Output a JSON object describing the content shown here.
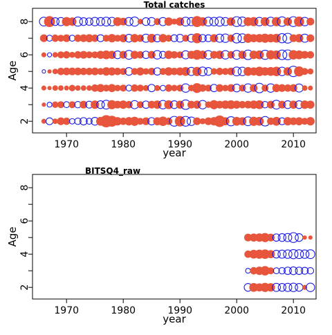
{
  "colors": {
    "positive": "#e8553d",
    "negative": "#1a1ae6",
    "frame": "#000000"
  },
  "chart_data": [
    {
      "type": "scatter",
      "subtype": "bubble-residuals",
      "title": "Total catches",
      "xlabel": "year",
      "ylabel": "Age",
      "xlim": [
        1964,
        2014
      ],
      "ylim": [
        1.3,
        8.8
      ],
      "xticks": [
        1970,
        1980,
        1990,
        2000,
        2010
      ],
      "yticks": [
        2,
        4,
        6,
        8
      ],
      "y_minor_ticks": [
        3,
        5,
        7
      ],
      "legend": "none",
      "grid": false,
      "ages": [
        2,
        3,
        4,
        5,
        6,
        7,
        8
      ],
      "years": [
        1966,
        1967,
        1968,
        1969,
        1970,
        1971,
        1972,
        1973,
        1974,
        1975,
        1976,
        1977,
        1978,
        1979,
        1980,
        1981,
        1982,
        1983,
        1984,
        1985,
        1986,
        1987,
        1988,
        1989,
        1990,
        1991,
        1992,
        1993,
        1994,
        1995,
        1996,
        1997,
        1998,
        1999,
        2000,
        2001,
        2002,
        2003,
        2004,
        2005,
        2006,
        2007,
        2008,
        2009,
        2010,
        2011,
        2012,
        2013
      ],
      "residuals": {
        "2": [
          0.4,
          -0.8,
          0.5,
          1.0,
          0.9,
          -0.5,
          -0.7,
          -0.9,
          -0.6,
          -1.0,
          1.3,
          2.5,
          2.0,
          1.2,
          0.9,
          1.2,
          1.4,
          0.8,
          1.0,
          -0.9,
          1.1,
          1.5,
          0.9,
          -1.6,
          1.8,
          -1.6,
          -1.2,
          1.0,
          0.6,
          1.0,
          1.2,
          2.2,
          1.1,
          -1.4,
          1.3,
          1.1,
          -1.3,
          1.4,
          1.3,
          -1.5,
          0.9,
          1.3,
          -0.8,
          1.2,
          1.0,
          1.1,
          0.8,
          1.2
        ],
        "3": [
          0.3,
          -0.4,
          0.7,
          0.8,
          -0.6,
          0.8,
          -0.7,
          1.0,
          -0.8,
          1.2,
          -1.0,
          -1.3,
          1.4,
          1.0,
          1.2,
          0.9,
          -1.1,
          0.8,
          -0.9,
          1.0,
          1.2,
          -1.2,
          1.3,
          -1.0,
          1.1,
          -1.5,
          1.0,
          1.1,
          -1.2,
          0.7,
          1.4,
          1.0,
          1.2,
          1.3,
          1.1,
          0.9,
          1.0,
          1.2,
          1.3,
          -0.7,
          1.0,
          -1.3,
          1.0,
          -1.0,
          1.1,
          -1.0,
          1.2,
          1.1
        ],
        "4": [
          0.4,
          0.3,
          0.5,
          0.5,
          0.4,
          0.7,
          0.5,
          0.5,
          0.5,
          0.9,
          1.1,
          0.8,
          1.1,
          0.7,
          0.8,
          -0.6,
          0.9,
          0.8,
          0.6,
          -0.9,
          0.6,
          -0.5,
          0.9,
          0.7,
          0.8,
          -1.2,
          0.7,
          1.6,
          0.9,
          0.8,
          -0.9,
          1.0,
          0.7,
          1.0,
          -1.0,
          0.8,
          -1.2,
          1.0,
          -1.5,
          0.8,
          -1.2,
          1.1,
          1.0,
          0.9,
          1.0,
          -1.1,
          0.5,
          0.4
        ],
        "5": [
          -0.2,
          0.3,
          0.5,
          0.9,
          1.0,
          1.0,
          1.0,
          0.9,
          0.9,
          1.0,
          0.8,
          1.2,
          1.1,
          0.9,
          0.8,
          -1.0,
          0.8,
          1.1,
          0.7,
          0.9,
          -0.9,
          0.8,
          1.2,
          0.9,
          1.1,
          1.3,
          -1.1,
          1.4,
          -1.3,
          -1.0,
          0.7,
          0.9,
          0.8,
          1.0,
          -1.3,
          -1.2,
          1.3,
          1.1,
          1.5,
          1.2,
          1.3,
          1.5,
          -1.2,
          1.2,
          -1.8,
          1.7,
          0.8,
          0.6
        ],
        "6": [
          0.4,
          -0.3,
          0.5,
          0.8,
          0.9,
          0.6,
          0.9,
          1.0,
          0.8,
          0.8,
          1.1,
          1.3,
          1.1,
          -1.0,
          1.0,
          -1.3,
          1.1,
          0.9,
          -0.9,
          1.0,
          -1.2,
          -0.8,
          1.2,
          0.9,
          0.8,
          -1.1,
          1.1,
          1.6,
          1.2,
          -1.2,
          1.0,
          1.2,
          -1.2,
          0.9,
          -1.3,
          1.1,
          -1.5,
          1.2,
          1.3,
          -1.4,
          1.4,
          1.3,
          -1.5,
          -1.6,
          1.5,
          1.3,
          1.0,
          0.9
        ],
        "7": [
          1.0,
          -0.6,
          0.9,
          0.8,
          1.0,
          -0.6,
          0.9,
          1.0,
          1.1,
          0.9,
          -0.8,
          0.8,
          1.2,
          0.8,
          1.1,
          -1.0,
          1.2,
          0.9,
          -1.1,
          1.3,
          -0.9,
          1.2,
          0.8,
          -0.8,
          -1.0,
          0.8,
          -1.0,
          1.7,
          -0.9,
          -0.8,
          1.1,
          -1.1,
          -1.2,
          0.9,
          -1.5,
          -1.3,
          1.4,
          1.1,
          1.2,
          1.4,
          1.2,
          1.3,
          -1.4,
          -1.6,
          1.0,
          1.2,
          -1.1,
          1.0
        ],
        "8": [
          -1.3,
          2.0,
          -1.0,
          -1.1,
          1.4,
          1.2,
          -1.4,
          -1.0,
          -0.9,
          -1.2,
          -1.1,
          -1.3,
          -1.2,
          1.3,
          1.0,
          -1.1,
          -1.4,
          0.5,
          -1.0,
          -1.1,
          0.8,
          -1.1,
          1.2,
          0.6,
          1.2,
          -1.3,
          -1.1,
          2.0,
          1.3,
          -1.3,
          -1.2,
          -1.4,
          -1.1,
          1.2,
          -1.6,
          -1.4,
          1.3,
          1.4,
          -1.2,
          1.3,
          -1.3,
          1.4,
          -1.5,
          1.2,
          -1.6,
          1.7,
          -1.2,
          1.0
        ]
      }
    },
    {
      "type": "scatter",
      "subtype": "bubble-residuals",
      "title": "BITSQ4_raw",
      "xlabel": "year",
      "ylabel": "Age",
      "xlim": [
        1964,
        2014
      ],
      "ylim": [
        1.3,
        8.8
      ],
      "xticks": [
        1970,
        1980,
        1990,
        2000,
        2010
      ],
      "yticks": [
        2,
        4,
        6,
        8
      ],
      "y_minor_ticks": [
        3,
        5,
        7
      ],
      "legend": "none",
      "grid": false,
      "ages": [
        2,
        3,
        4,
        5
      ],
      "years": [
        2002,
        2003,
        2004,
        2005,
        2006,
        2007,
        2008,
        2009,
        2010,
        2011,
        2012,
        2013
      ],
      "residuals": {
        "2": [
          -1.0,
          1.3,
          1.1,
          1.4,
          1.2,
          -1.1,
          -1.0,
          -1.1,
          -1.2,
          -1.0,
          0.4,
          -1.2
        ],
        "3": [
          -0.4,
          0.9,
          1.2,
          1.5,
          0.8,
          -0.6,
          -0.7,
          -0.9,
          -1.0,
          -0.9,
          -0.8,
          -0.7
        ],
        "4": [
          0.9,
          1.3,
          1.4,
          1.5,
          1.1,
          -1.0,
          -1.1,
          -1.2,
          -1.4,
          -1.3,
          -1.2,
          -1.3
        ],
        "5": [
          1.0,
          1.1,
          1.2,
          1.4,
          1.0,
          -0.9,
          -1.0,
          -1.1,
          -1.6,
          -1.0,
          0.3,
          0.3
        ]
      }
    }
  ]
}
